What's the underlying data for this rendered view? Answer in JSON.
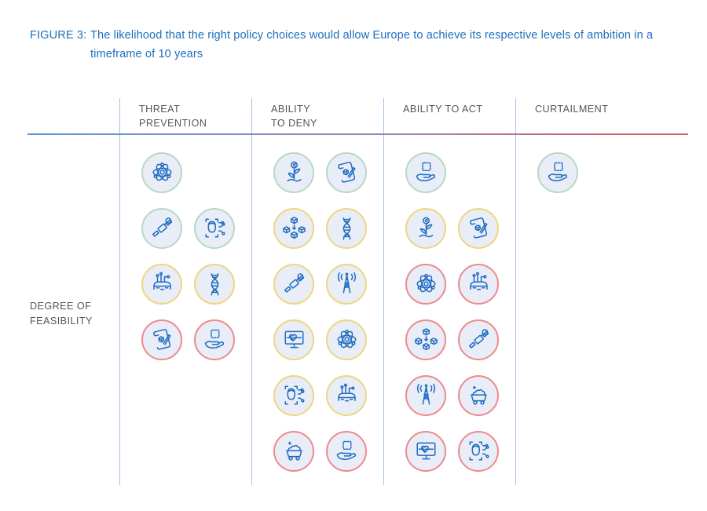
{
  "figure": {
    "label": "FIGURE 3:",
    "title": "The likelihood that the right policy choices would allow Europe to achieve its respective levels of ambition in a timeframe of 10 years"
  },
  "y_axis": {
    "line1": "DEGREE OF",
    "line2": "FEASIBILITY"
  },
  "colors": {
    "title_blue": "#1d6fbf",
    "text_gray": "#55565a",
    "icon_blue": "#1e6cc0",
    "circle_fill": "#e9edf8",
    "divider_blue": "#a4c2e4",
    "gradient_left": "#5b93d6",
    "gradient_mid": "#9a7fae",
    "gradient_right": "#e25b5b",
    "ring_colors": {
      "green": "#b7d8c3",
      "yellow": "#eed67d",
      "red": "#f0898b"
    }
  },
  "columns": [
    {
      "id": "threat-prevention",
      "label_lines": [
        "THREAT",
        "PREVENTION"
      ],
      "rows": [
        [
          {
            "icon": "atom",
            "ring": "green"
          }
        ],
        [
          {
            "icon": "satellite",
            "ring": "green"
          },
          {
            "icon": "facial-recognition",
            "ring": "green"
          }
        ],
        [
          {
            "icon": "autonomous-vehicle",
            "ring": "yellow"
          },
          {
            "icon": "dna",
            "ring": "yellow"
          }
        ],
        [
          {
            "icon": "policy-scroll",
            "ring": "red"
          },
          {
            "icon": "semiconductor-hand",
            "ring": "red"
          }
        ],
        [],
        []
      ]
    },
    {
      "id": "ability-to-deny",
      "label_lines": [
        "ABILITY",
        "TO DENY"
      ],
      "rows": [
        [
          {
            "icon": "green-investment",
            "ring": "green"
          },
          {
            "icon": "policy-scroll",
            "ring": "green"
          }
        ],
        [
          {
            "icon": "blockchain-cubes",
            "ring": "yellow"
          },
          {
            "icon": "dna",
            "ring": "yellow"
          }
        ],
        [
          {
            "icon": "satellite",
            "ring": "yellow"
          },
          {
            "icon": "telecom-tower",
            "ring": "yellow"
          }
        ],
        [
          {
            "icon": "digital-health",
            "ring": "yellow"
          },
          {
            "icon": "atom",
            "ring": "yellow"
          }
        ],
        [
          {
            "icon": "facial-recognition",
            "ring": "yellow"
          },
          {
            "icon": "autonomous-vehicle",
            "ring": "yellow"
          }
        ],
        [
          {
            "icon": "raw-materials",
            "ring": "red"
          },
          {
            "icon": "semiconductor-hand",
            "ring": "red"
          }
        ]
      ]
    },
    {
      "id": "ability-to-act",
      "label_lines": [
        "ABILITY TO ACT"
      ],
      "rows": [
        [
          {
            "icon": "semiconductor-hand",
            "ring": "green"
          }
        ],
        [
          {
            "icon": "green-investment",
            "ring": "yellow"
          },
          {
            "icon": "policy-scroll",
            "ring": "yellow"
          }
        ],
        [
          {
            "icon": "atom",
            "ring": "red"
          },
          {
            "icon": "autonomous-vehicle",
            "ring": "red"
          }
        ],
        [
          {
            "icon": "blockchain-cubes",
            "ring": "red"
          },
          {
            "icon": "satellite",
            "ring": "red"
          }
        ],
        [
          {
            "icon": "telecom-tower",
            "ring": "red"
          },
          {
            "icon": "raw-materials",
            "ring": "red"
          }
        ],
        [
          {
            "icon": "digital-health",
            "ring": "red"
          },
          {
            "icon": "facial-recognition",
            "ring": "red"
          }
        ]
      ]
    },
    {
      "id": "curtailment",
      "label_lines": [
        "CURTAILMENT"
      ],
      "rows": [
        [
          {
            "icon": "semiconductor-hand",
            "ring": "green"
          }
        ],
        [],
        [],
        [],
        [],
        []
      ]
    }
  ]
}
